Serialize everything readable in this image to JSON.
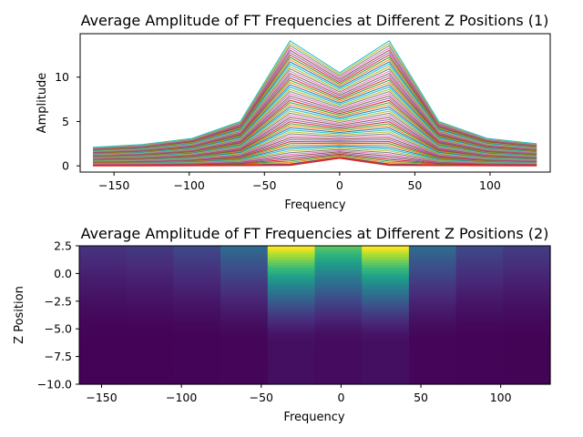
{
  "chart_data": [
    {
      "type": "line",
      "title": "Average Amplitude of FT Frequencies at Different Z Positions (1)",
      "xlabel": "Frequency",
      "ylabel": "Amplitude",
      "xlim": [
        -172.5,
        140
      ],
      "ylim": [
        -0.7,
        14.9
      ],
      "xticks": [
        -150,
        -100,
        -50,
        0,
        50,
        100
      ],
      "yticks": [
        0,
        5,
        10
      ],
      "x": [
        -164,
        -131,
        -98,
        -66,
        -33,
        0,
        33,
        66,
        98,
        131
      ],
      "series_count": 60,
      "envelope_max": [
        2.1,
        2.4,
        3.1,
        5.0,
        14.1,
        10.5,
        14.1,
        5.0,
        3.1,
        2.5
      ],
      "bottom_series": [
        0.05,
        0.05,
        0.06,
        0.07,
        0.1,
        0.9,
        0.1,
        0.07,
        0.06,
        0.05
      ],
      "grid": false,
      "legend": "none"
    },
    {
      "type": "heatmap",
      "title": "Average Amplitude of FT Frequencies at Different Z Positions (2)",
      "xlabel": "Frequency",
      "ylabel": "Z Position",
      "xlim": [
        -164,
        131
      ],
      "ylim": [
        -10,
        2.5
      ],
      "xticks": [
        -150,
        -100,
        -50,
        0,
        50,
        100
      ],
      "yticks": [
        2.5,
        0.0,
        -2.5,
        -5.0,
        -7.5,
        -10.0
      ],
      "x": [
        -164,
        -131,
        -98,
        -66,
        -33,
        0,
        33,
        66,
        98,
        131
      ],
      "z_range": [
        -10,
        2.5
      ],
      "colormap": "viridis",
      "column_peak": [
        0.15,
        0.17,
        0.22,
        0.35,
        1.0,
        0.74,
        1.0,
        0.35,
        0.22,
        0.18
      ],
      "grid": false
    }
  ]
}
